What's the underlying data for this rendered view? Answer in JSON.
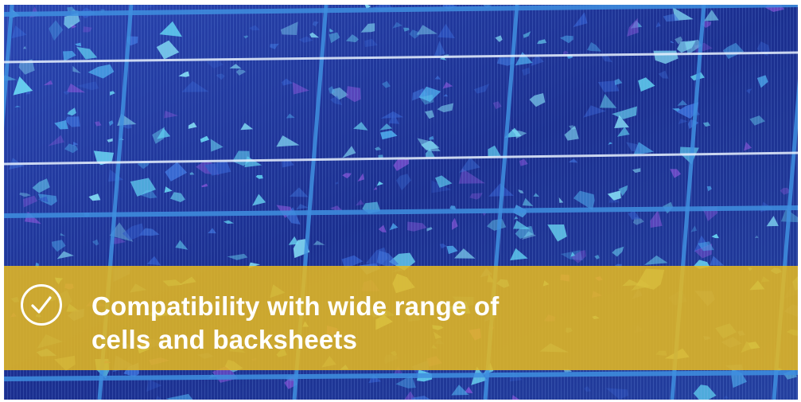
{
  "banner": {
    "headline_line_1": "Compatibility with wide range of",
    "headline_line_2": "cells and backsheets",
    "icon": "check-circle-icon",
    "color": "#e8ba20"
  },
  "photo": {
    "subject": "solar-panel-cells",
    "colors": {
      "base": "#1b2f8f",
      "grid": "#3f8fe0",
      "crystal_highlight": "#5fd0f0"
    }
  }
}
